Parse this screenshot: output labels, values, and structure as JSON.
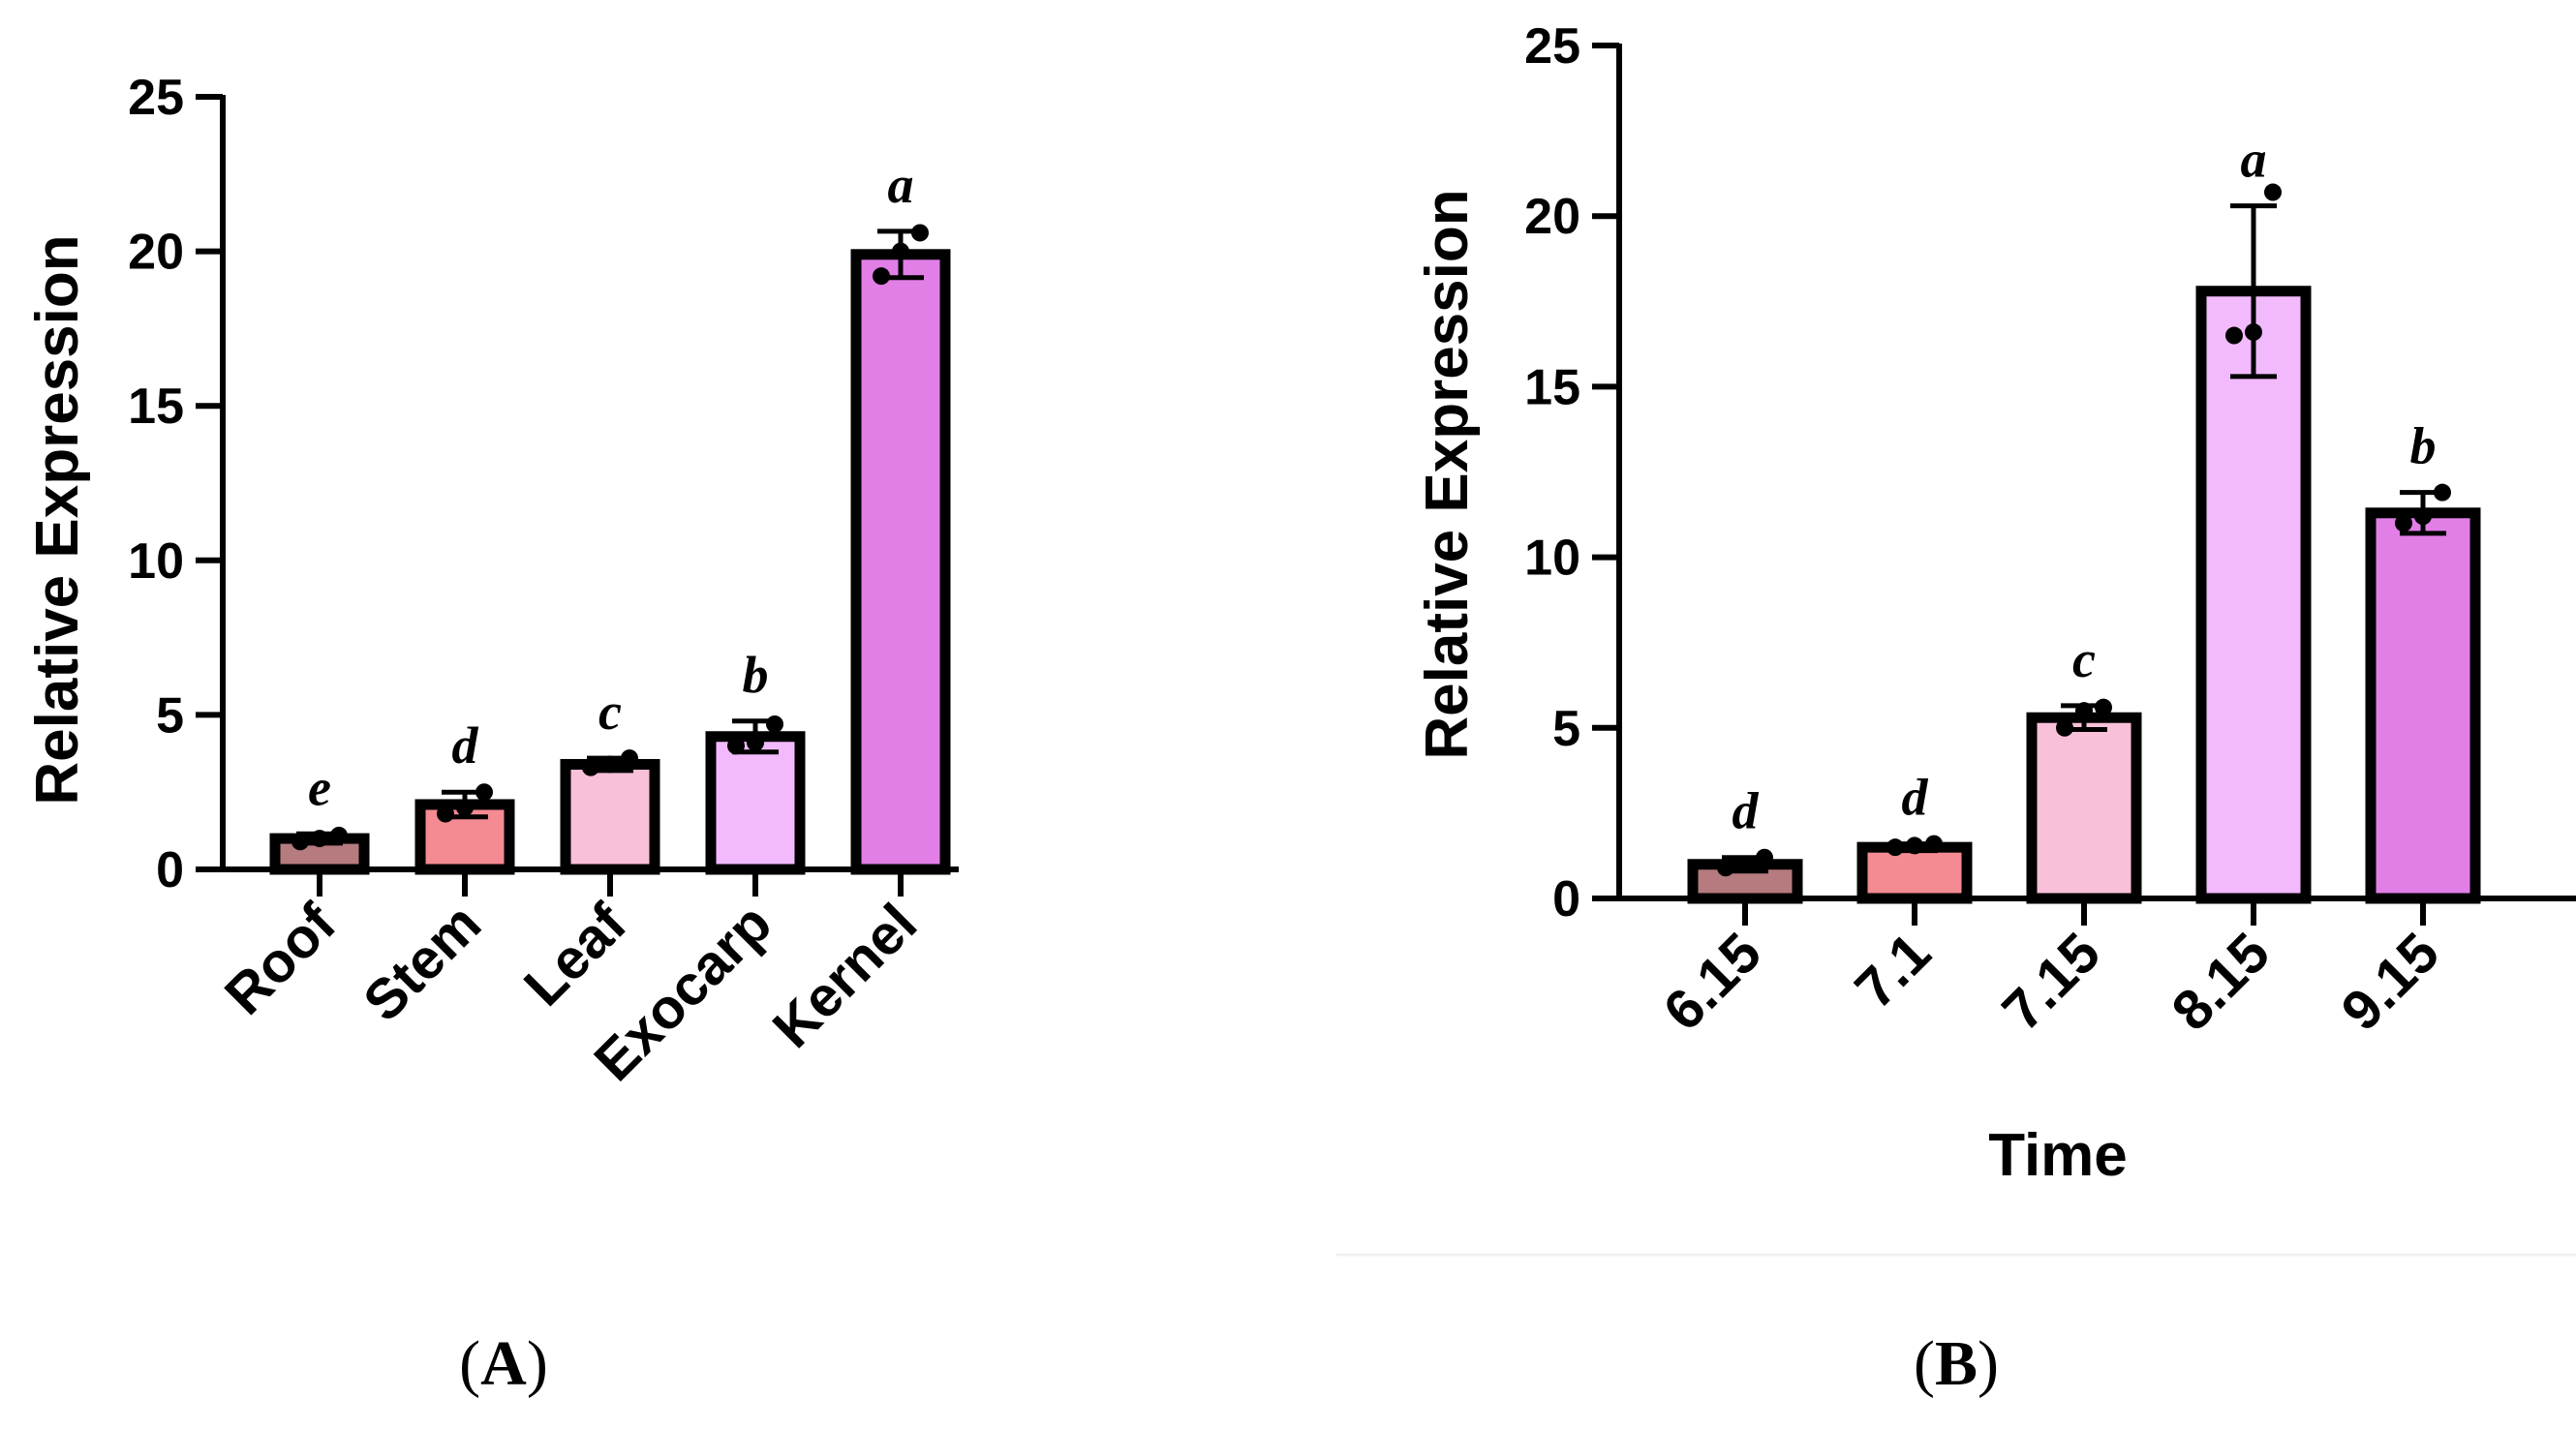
{
  "chart_data": [
    {
      "type": "bar",
      "panel": "A",
      "panel_label": "A",
      "ylabel": "Relative Expression",
      "xlabel": "",
      "ylim": [
        0,
        25
      ],
      "yticks": [
        0,
        5,
        10,
        15,
        20,
        25
      ],
      "categories": [
        "Roof",
        "Stem",
        "Leaf",
        "Exocarp",
        "Kernel"
      ],
      "values": [
        1.0,
        2.1,
        3.4,
        4.3,
        19.9
      ],
      "errors": [
        0.15,
        0.4,
        0.2,
        0.5,
        0.75
      ],
      "points": [
        [
          0.9,
          1.0,
          1.1
        ],
        [
          1.8,
          2.0,
          2.5
        ],
        [
          3.3,
          3.4,
          3.6
        ],
        [
          4.0,
          4.1,
          4.7
        ],
        [
          19.2,
          20.0,
          20.6
        ]
      ],
      "significance": [
        "e",
        "d",
        "c",
        "b",
        "a"
      ],
      "colors": [
        "#b67b7f",
        "#f48a92",
        "#f9c0d9",
        "#f2bafc",
        "#e27fe7"
      ]
    },
    {
      "type": "bar",
      "panel": "B",
      "panel_label": "B",
      "ylabel": "Relative Expression",
      "xlabel": "Time",
      "ylim": [
        0,
        25
      ],
      "yticks": [
        0,
        5,
        10,
        15,
        20,
        25
      ],
      "categories": [
        "6.15",
        "7.1",
        "7.15",
        "8.15",
        "9.15"
      ],
      "values": [
        1.0,
        1.5,
        5.3,
        17.8,
        11.3
      ],
      "errors": [
        0.2,
        0.1,
        0.35,
        2.5,
        0.6
      ],
      "points": [
        [
          0.9,
          1.0,
          1.2
        ],
        [
          1.5,
          1.55,
          1.6
        ],
        [
          5.0,
          5.5,
          5.6
        ],
        [
          16.5,
          16.6,
          20.7
        ],
        [
          11.0,
          11.2,
          11.9
        ]
      ],
      "significance": [
        "d",
        "d",
        "c",
        "a",
        "b"
      ],
      "colors": [
        "#b67b7f",
        "#f48a92",
        "#f9c0d9",
        "#f2bafc",
        "#e27fe7"
      ]
    }
  ]
}
